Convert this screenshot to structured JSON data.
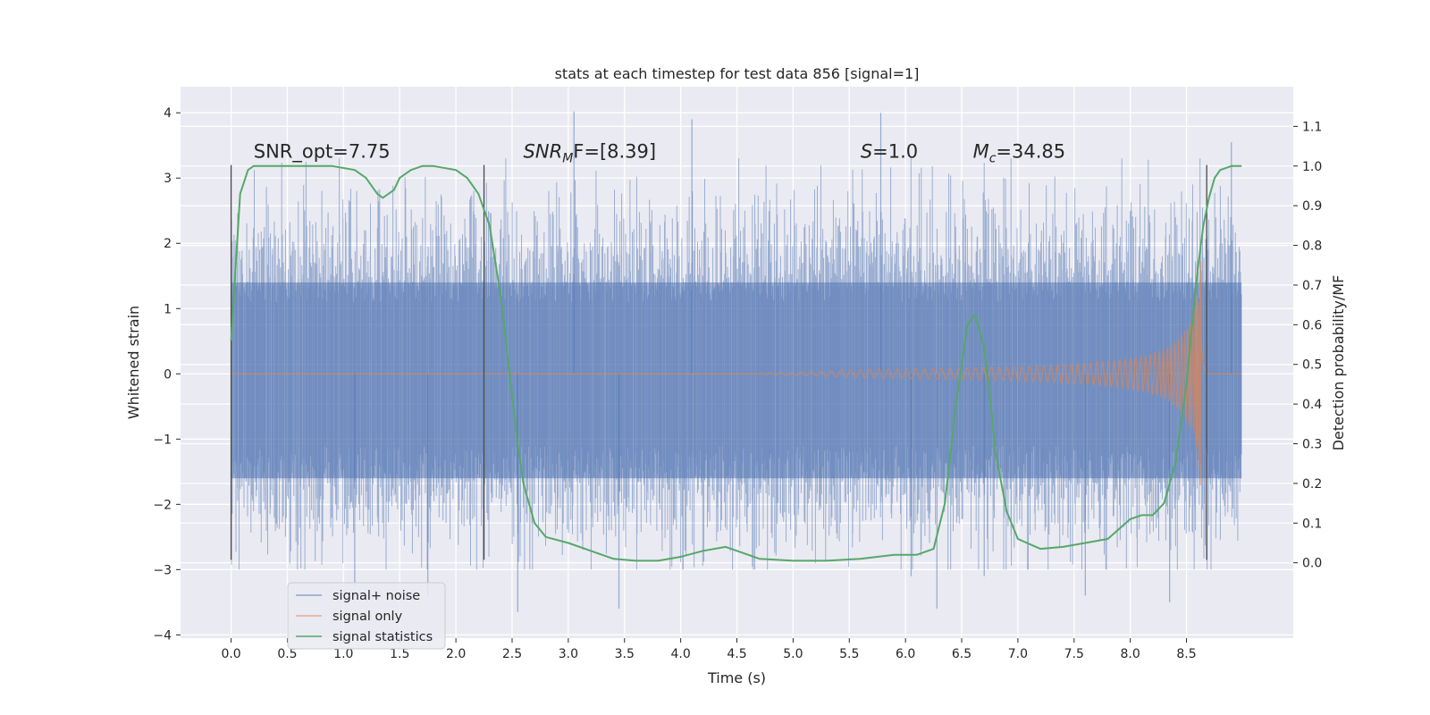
{
  "chart_data": {
    "type": "line",
    "title": "stats at each timestep for test data 856 [signal=1]",
    "xlabel": "Time (s)",
    "ylabel": "Whitened strain",
    "y2label": "Detection probability/MF",
    "xlim": [
      -0.45,
      9.45
    ],
    "ylim": [
      -4.05,
      4.4
    ],
    "y2lim": [
      -0.19,
      1.2
    ],
    "xticks": [
      0.0,
      0.5,
      1.0,
      1.5,
      2.0,
      2.5,
      3.0,
      3.5,
      4.0,
      4.5,
      5.0,
      5.5,
      6.0,
      6.5,
      7.0,
      7.5,
      8.0,
      8.5
    ],
    "xtick_labels": [
      "0.0",
      "0.5",
      "1.0",
      "1.5",
      "2.0",
      "2.5",
      "3.0",
      "3.5",
      "4.0",
      "4.5",
      "5.0",
      "5.5",
      "6.0",
      "6.5",
      "7.0",
      "7.5",
      "8.0",
      "8.5"
    ],
    "yticks": [
      4,
      3,
      2,
      1,
      0,
      -1,
      -2,
      -3,
      -4
    ],
    "ytick_labels": [
      "4",
      "3",
      "2",
      "1",
      "0",
      "−1",
      "−2",
      "−3",
      "−4"
    ],
    "y2ticks": [
      1.1,
      1.0,
      0.9,
      0.8,
      0.7,
      0.6,
      0.5,
      0.4,
      0.3,
      0.2,
      0.1,
      0.0
    ],
    "y2tick_labels": [
      "1.1",
      "1.0",
      "0.9",
      "0.8",
      "0.7",
      "0.6",
      "0.5",
      "0.4",
      "0.3",
      "0.2",
      "0.1",
      "0.0"
    ],
    "grid": true,
    "legend_position": "lower-left",
    "series": [
      {
        "name": "signal+ noise",
        "axis": "left",
        "color": "#4c72b0",
        "time_range": [
          0.0,
          8.99
        ],
        "core_band": [
          -1.6,
          1.4
        ],
        "typical_envelope": [
          -2.5,
          2.6
        ],
        "notable_peaks": [
          [
            3.05,
            4.02
          ],
          [
            5.78,
            4.0
          ],
          [
            4.1,
            3.9
          ],
          [
            8.9,
            3.55
          ],
          [
            2.55,
            -3.65
          ],
          [
            1.75,
            -3.4
          ],
          [
            3.45,
            -3.6
          ],
          [
            6.28,
            -3.6
          ],
          [
            1.1,
            -3.25
          ],
          [
            8.35,
            -3.5
          ],
          [
            6.7,
            -3.1
          ],
          [
            7.6,
            -3.4
          ],
          [
            6.05,
            -3.1
          ]
        ]
      },
      {
        "name": "signal only",
        "axis": "left",
        "color": "#dd8452",
        "time_range": [
          0.0,
          8.99
        ],
        "chirp_start": 4.5,
        "merger_time": 8.63,
        "peak_amplitude": 1.9,
        "final_value": 0.0
      },
      {
        "name": "signal statistics",
        "axis": "right",
        "color": "#55a868",
        "x": [
          0.0,
          0.03,
          0.08,
          0.15,
          0.2,
          0.3,
          0.5,
          0.7,
          0.9,
          1.1,
          1.2,
          1.3,
          1.35,
          1.45,
          1.5,
          1.6,
          1.7,
          1.8,
          2.0,
          2.1,
          2.2,
          2.3,
          2.4,
          2.5,
          2.55,
          2.6,
          2.7,
          2.8,
          3.0,
          3.2,
          3.4,
          3.6,
          3.8,
          4.0,
          4.2,
          4.4,
          4.5,
          4.7,
          5.0,
          5.3,
          5.6,
          5.9,
          6.1,
          6.25,
          6.35,
          6.45,
          6.55,
          6.62,
          6.7,
          6.75,
          6.8,
          6.9,
          7.0,
          7.2,
          7.4,
          7.6,
          7.8,
          8.0,
          8.1,
          8.2,
          8.3,
          8.4,
          8.5,
          8.55,
          8.6,
          8.65,
          8.7,
          8.75,
          8.8,
          8.9,
          8.99
        ],
        "y": [
          0.56,
          0.7,
          0.93,
          0.99,
          1.0,
          1.0,
          1.0,
          1.0,
          1.0,
          0.99,
          0.97,
          0.93,
          0.92,
          0.94,
          0.97,
          0.99,
          1.0,
          1.0,
          0.99,
          0.97,
          0.93,
          0.85,
          0.67,
          0.42,
          0.3,
          0.2,
          0.1,
          0.065,
          0.05,
          0.03,
          0.01,
          0.005,
          0.005,
          0.015,
          0.03,
          0.04,
          0.03,
          0.01,
          0.005,
          0.005,
          0.01,
          0.02,
          0.02,
          0.035,
          0.15,
          0.4,
          0.6,
          0.625,
          0.54,
          0.42,
          0.28,
          0.13,
          0.06,
          0.035,
          0.04,
          0.05,
          0.06,
          0.11,
          0.12,
          0.12,
          0.15,
          0.25,
          0.45,
          0.6,
          0.74,
          0.85,
          0.92,
          0.97,
          0.99,
          1.0,
          1.0
        ]
      }
    ],
    "vertical_markers": [
      {
        "x": 0.0,
        "range": [
          -2.85,
          3.2
        ]
      },
      {
        "x": 2.25,
        "range": [
          -2.85,
          3.2
        ]
      },
      {
        "x": 8.68,
        "range": [
          -2.85,
          3.2
        ]
      }
    ],
    "annotations": [
      {
        "id": "snr-opt",
        "label": "SNR_opt=7.75",
        "x": 0.2,
        "y": 3.2
      },
      {
        "id": "snr-mf",
        "label": "SNR",
        "sub": "M",
        "rest": "F=[8.39]",
        "x": 2.6,
        "y": 3.2
      },
      {
        "id": "s-value",
        "label": "S",
        "rest": "=1.0",
        "x": 5.6,
        "y": 3.2
      },
      {
        "id": "chirp-mass",
        "label": "M",
        "sub": "c",
        "rest": "=34.85",
        "x": 6.6,
        "y": 3.2
      }
    ],
    "legend": [
      "signal+ noise",
      "signal only",
      "signal statistics"
    ]
  }
}
